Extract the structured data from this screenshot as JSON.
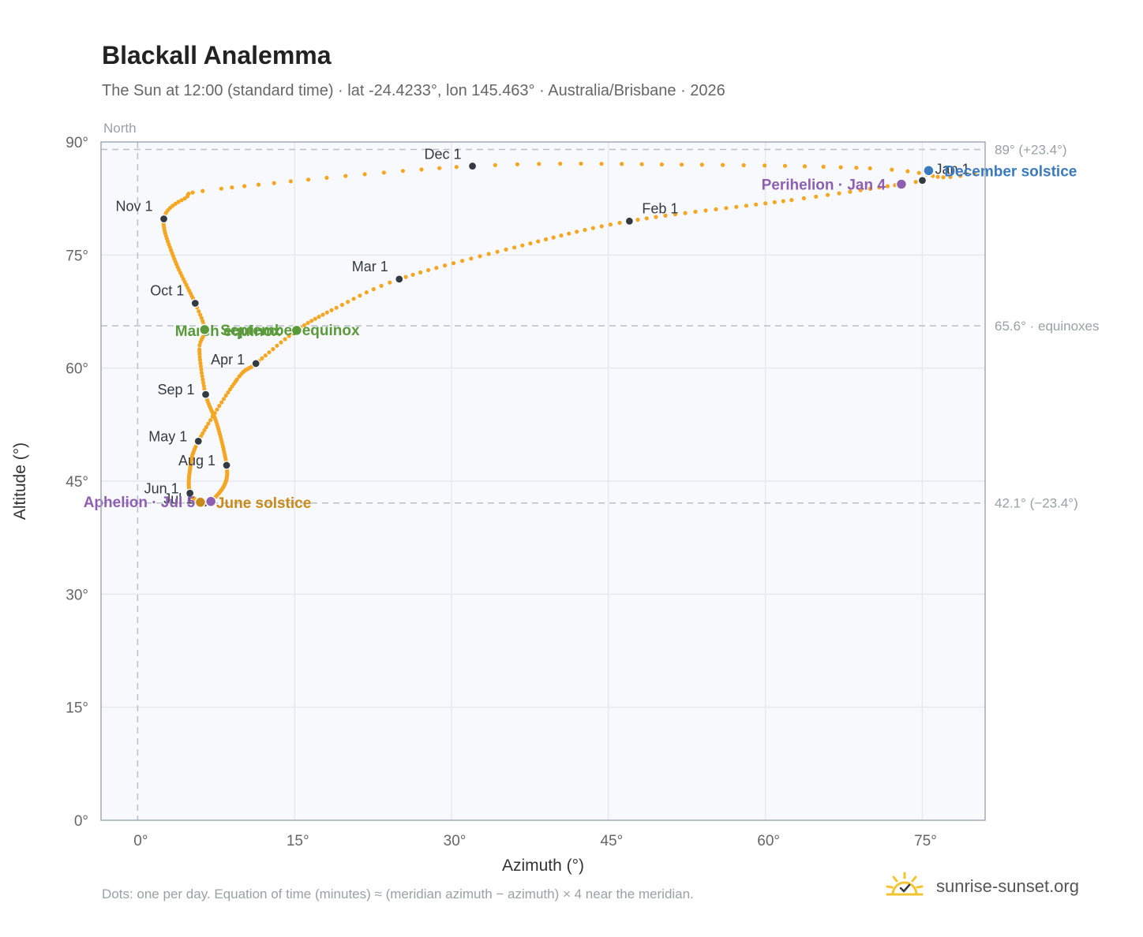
{
  "title": "Blackall Analemma",
  "subtitle": "The Sun at 12:00 (standard time) · lat -24.4233°, lon 145.463° · Australia/Brisbane · 2026",
  "footer": "Dots: one per day. Equation of time (minutes) ≈ (meridian azimuth − azimuth) × 4 near the meridian.",
  "brand": {
    "name": "sunrise-sunset.org",
    "logo_icon": "sun-logo-icon"
  },
  "colors": {
    "path": "#f5a623",
    "month_marker": "#333a42",
    "december_solstice": "#3a7abf",
    "june_solstice": "#c98a1a",
    "equinox": "#5a9a3a",
    "perihelion": "#8e5fb0",
    "grid": "#e6e9ee",
    "plot_bg": "#f7f9fc",
    "reference": "#b8c0ca"
  },
  "chart_data": {
    "type": "scatter",
    "xlabel": "Azimuth (°)",
    "ylabel": "Altitude (°)",
    "xlim": [
      -3.5,
      81
    ],
    "ylim": [
      0,
      90
    ],
    "xticks": [
      0,
      15,
      30,
      45,
      60,
      75
    ],
    "yticks": [
      0,
      15,
      30,
      45,
      60,
      75,
      90
    ],
    "tick_suffix": "°",
    "grid": true,
    "meridian": {
      "azimuth": 0,
      "label": "North"
    },
    "reference_lines": [
      {
        "altitude": 89,
        "label": "89° (+23.4°)"
      },
      {
        "altitude": 65.6,
        "label": "65.6° · equinoxes"
      },
      {
        "altitude": 42.1,
        "label": "42.1° (−23.4°)"
      }
    ],
    "path_keypoints": [
      {
        "doy": 1,
        "az": 75.0,
        "alt": 84.9
      },
      {
        "doy": 4,
        "az": 73.0,
        "alt": 84.4
      },
      {
        "doy": 15,
        "az": 62.5,
        "alt": 82.3
      },
      {
        "doy": 32,
        "az": 47.0,
        "alt": 79.5
      },
      {
        "doy": 46,
        "az": 36.0,
        "alt": 76.0
      },
      {
        "doy": 60,
        "az": 25.0,
        "alt": 71.8
      },
      {
        "doy": 69,
        "az": 19.0,
        "alt": 68.0
      },
      {
        "doy": 79,
        "az": 15.2,
        "alt": 65.0
      },
      {
        "doy": 90,
        "az": 11.3,
        "alt": 60.6
      },
      {
        "doy": 101,
        "az": 9.5,
        "alt": 58.5
      },
      {
        "doy": 121,
        "az": 5.8,
        "alt": 50.3
      },
      {
        "doy": 136,
        "az": 5.0,
        "alt": 46.5
      },
      {
        "doy": 152,
        "az": 5.0,
        "alt": 43.4
      },
      {
        "doy": 172,
        "az": 6.0,
        "alt": 42.2
      },
      {
        "doy": 182,
        "az": 6.4,
        "alt": 42.1
      },
      {
        "doy": 186,
        "az": 7.0,
        "alt": 42.3
      },
      {
        "doy": 200,
        "az": 8.3,
        "alt": 44.5
      },
      {
        "doy": 213,
        "az": 8.5,
        "alt": 47.1
      },
      {
        "doy": 230,
        "az": 7.6,
        "alt": 52.5
      },
      {
        "doy": 244,
        "az": 6.5,
        "alt": 56.5
      },
      {
        "doy": 259,
        "az": 5.9,
        "alt": 62.5
      },
      {
        "doy": 266,
        "az": 6.4,
        "alt": 65.1
      },
      {
        "doy": 274,
        "az": 5.5,
        "alt": 68.6
      },
      {
        "doy": 290,
        "az": 3.5,
        "alt": 74.5
      },
      {
        "doy": 305,
        "az": 2.5,
        "alt": 79.8
      },
      {
        "doy": 314,
        "az": 4.5,
        "alt": 82.5
      },
      {
        "doy": 320,
        "az": 8.0,
        "alt": 83.8
      },
      {
        "doy": 335,
        "az": 32.0,
        "alt": 86.8
      },
      {
        "doy": 345,
        "az": 52.0,
        "alt": 87.0
      },
      {
        "doy": 355,
        "az": 70.0,
        "alt": 86.5
      },
      {
        "doy": 360,
        "az": 76.0,
        "alt": 85.5
      },
      {
        "doy": 366,
        "az": 75.0,
        "alt": 84.9
      }
    ],
    "month_markers": [
      {
        "label": "Jan 1",
        "az": 75.0,
        "alt": 84.9,
        "anchor": "right",
        "dy": -2
      },
      {
        "label": "Feb 1",
        "az": 47.0,
        "alt": 79.5,
        "anchor": "right",
        "dy": -4
      },
      {
        "label": "Mar 1",
        "az": 25.0,
        "alt": 71.8,
        "anchor": "left",
        "dy": -4
      },
      {
        "label": "Apr 1",
        "az": 11.3,
        "alt": 60.6,
        "anchor": "left",
        "dy": 7
      },
      {
        "label": "May 1",
        "az": 5.8,
        "alt": 50.3,
        "anchor": "left",
        "dy": 6
      },
      {
        "label": "Jun 1",
        "az": 5.0,
        "alt": 43.4,
        "anchor": "left",
        "dy": 6
      },
      {
        "label": "Jul 1",
        "az": 6.4,
        "alt": 42.1,
        "anchor": "left",
        "dy": 7
      },
      {
        "label": "Aug 1",
        "az": 8.5,
        "alt": 47.1,
        "anchor": "left",
        "dy": 6
      },
      {
        "label": "Sep 1",
        "az": 6.5,
        "alt": 56.5,
        "anchor": "left",
        "dy": 6
      },
      {
        "label": "Oct 1",
        "az": 5.5,
        "alt": 68.6,
        "anchor": "left",
        "dy": -4
      },
      {
        "label": "Nov 1",
        "az": 2.5,
        "alt": 79.8,
        "anchor": "left",
        "dy": -4
      },
      {
        "label": "Dec 1",
        "az": 32.0,
        "alt": 86.8,
        "anchor": "left",
        "dy": -3
      }
    ],
    "events": [
      {
        "label": "December solstice",
        "az": 75.6,
        "alt": 86.2,
        "color_key": "december_solstice",
        "anchor": "right"
      },
      {
        "label": "Perihelion · Jan 4",
        "az": 73.0,
        "alt": 84.4,
        "color_key": "perihelion",
        "anchor": "left"
      },
      {
        "label": "March equinox",
        "az": 15.2,
        "alt": 65.0,
        "color_key": "equinox",
        "anchor": "left"
      },
      {
        "label": "September equinox",
        "az": 6.4,
        "alt": 65.1,
        "color_key": "equinox",
        "anchor": "right"
      },
      {
        "label": "June solstice",
        "az": 6.0,
        "alt": 42.2,
        "color_key": "june_solstice",
        "anchor": "right"
      },
      {
        "label": "Aphelion · Jul 5",
        "az": 7.0,
        "alt": 42.3,
        "color_key": "perihelion",
        "anchor": "left"
      }
    ]
  }
}
